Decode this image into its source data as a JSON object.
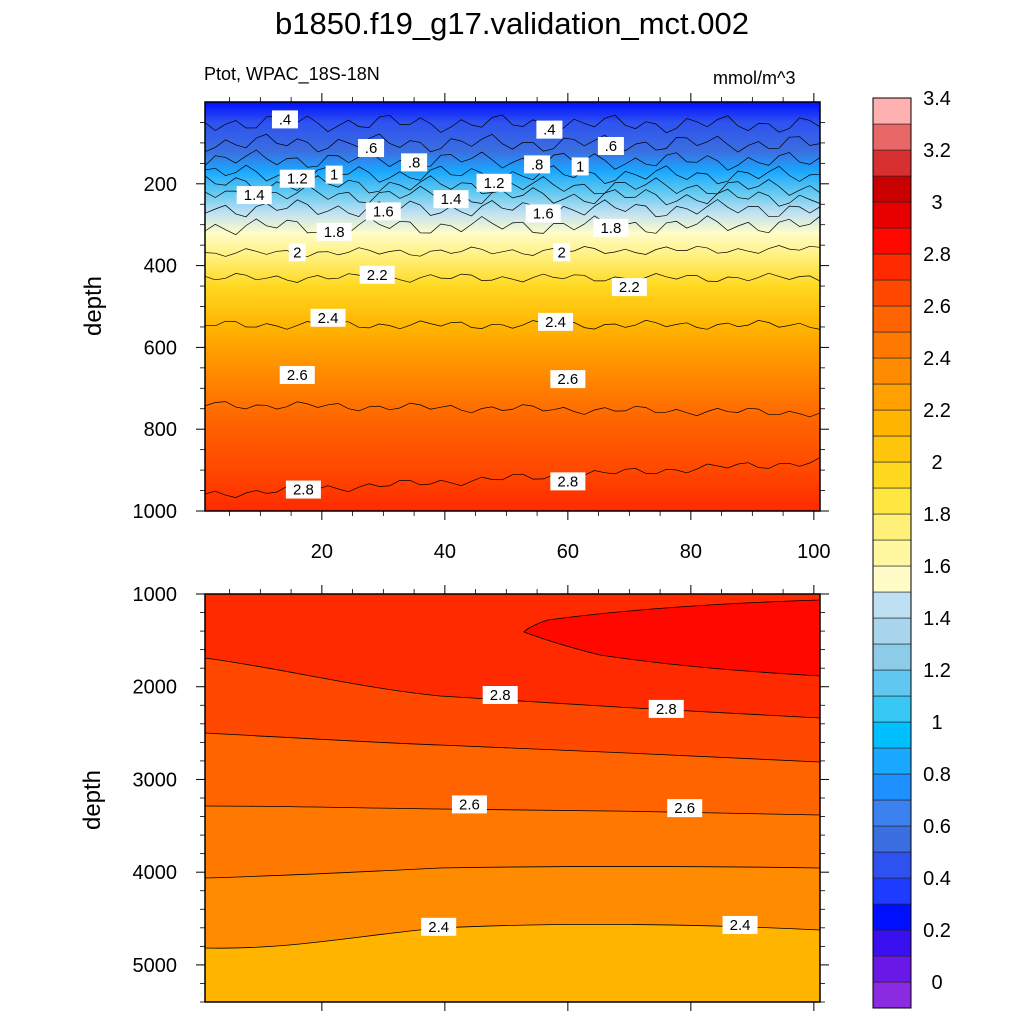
{
  "title": "b1850.f19_g17.validation_mct.002",
  "subtitle_left": "Ptot, WPAC_18S-18N",
  "subtitle_right": "mmol/m^3",
  "chart_data": [
    {
      "type": "contour",
      "panel": "upper",
      "ylabel": "depth",
      "xlabel": "",
      "xlim": [
        1,
        101
      ],
      "ylim": [
        1000,
        0
      ],
      "x_ticks": [
        20,
        40,
        60,
        80,
        100
      ],
      "y_ticks": [
        200,
        400,
        600,
        800,
        1000
      ],
      "contour_levels": [
        {
          "value": 0.4,
          "depth_left": 50,
          "depth_right": 55
        },
        {
          "value": 0.6,
          "depth_left": 100,
          "depth_right": 102
        },
        {
          "value": 0.8,
          "depth_left": 140,
          "depth_right": 145
        },
        {
          "value": 1,
          "depth_left": 175,
          "depth_right": 180
        },
        {
          "value": 1.2,
          "depth_left": 200,
          "depth_right": 210
        },
        {
          "value": 1.4,
          "depth_left": 225,
          "depth_right": 235
        },
        {
          "value": 1.6,
          "depth_left": 260,
          "depth_right": 262
        },
        {
          "value": 1.8,
          "depth_left": 305,
          "depth_right": 300
        },
        {
          "value": 2,
          "depth_left": 370,
          "depth_right": 360
        },
        {
          "value": 2.2,
          "depth_left": 430,
          "depth_right": 430
        },
        {
          "value": 2.4,
          "depth_left": 545,
          "depth_right": 545
        },
        {
          "value": 2.6,
          "depth_left": 740,
          "depth_right": 760
        },
        {
          "value": 2.8,
          "depth_left": 960,
          "depth_right": 880
        }
      ],
      "contour_labels": [
        {
          "text": ".4",
          "x": 14,
          "depth": 45
        },
        {
          "text": ".6",
          "x": 28,
          "depth": 115
        },
        {
          "text": ".8",
          "x": 35,
          "depth": 150
        },
        {
          "text": "1",
          "x": 22,
          "depth": 180
        },
        {
          "text": "1.2",
          "x": 16,
          "depth": 190
        },
        {
          "text": "1.4",
          "x": 9,
          "depth": 230
        },
        {
          "text": "1.6",
          "x": 30,
          "depth": 270
        },
        {
          "text": "1.8",
          "x": 22,
          "depth": 320
        },
        {
          "text": "2",
          "x": 16,
          "depth": 370
        },
        {
          "text": "2.2",
          "x": 29,
          "depth": 425
        },
        {
          "text": "2.4",
          "x": 21,
          "depth": 530
        },
        {
          "text": "2.6",
          "x": 16,
          "depth": 670
        },
        {
          "text": "2.8",
          "x": 17,
          "depth": 950
        },
        {
          "text": ".4",
          "x": 57,
          "depth": 70
        },
        {
          "text": ".6",
          "x": 67,
          "depth": 110
        },
        {
          "text": ".8",
          "x": 55,
          "depth": 155
        },
        {
          "text": "1",
          "x": 62,
          "depth": 160
        },
        {
          "text": "1.2",
          "x": 48,
          "depth": 200
        },
        {
          "text": "1.4",
          "x": 41,
          "depth": 240
        },
        {
          "text": "1.6",
          "x": 56,
          "depth": 275
        },
        {
          "text": "1.8",
          "x": 67,
          "depth": 310
        },
        {
          "text": "2",
          "x": 59,
          "depth": 370
        },
        {
          "text": "2.2",
          "x": 70,
          "depth": 455
        },
        {
          "text": "2.4",
          "x": 58,
          "depth": 540
        },
        {
          "text": "2.6",
          "x": 60,
          "depth": 680
        },
        {
          "text": "2.8",
          "x": 60,
          "depth": 930
        }
      ]
    },
    {
      "type": "contour",
      "panel": "lower",
      "ylabel": "depth",
      "xlabel": "",
      "xlim": [
        1,
        101
      ],
      "ylim": [
        1000,
        5400
      ],
      "y_ticks": [
        1000,
        2000,
        3000,
        4000,
        5000
      ],
      "contour_labels": [
        {
          "text": "2.8",
          "x": 49,
          "depth": 2100
        },
        {
          "text": "2.8",
          "x": 76,
          "depth": 2250
        },
        {
          "text": "2.6",
          "x": 44,
          "depth": 3280
        },
        {
          "text": "2.6",
          "x": 79,
          "depth": 3320
        },
        {
          "text": "2.4",
          "x": 39,
          "depth": 4600
        },
        {
          "text": "2.4",
          "x": 88,
          "depth": 4580
        }
      ]
    }
  ],
  "colorbar": {
    "labels": [
      "0",
      "0.2",
      "0.4",
      "0.6",
      "0.8",
      "1",
      "1.2",
      "1.4",
      "1.6",
      "1.8",
      "2",
      "2.2",
      "2.4",
      "2.6",
      "2.8",
      "3",
      "3.2",
      "3.4"
    ],
    "colors": [
      "#8a2be2",
      "#6a18e8",
      "#3a10f0",
      "#0010ff",
      "#1e3cff",
      "#2e52f0",
      "#3b6ee0",
      "#3b82f0",
      "#1e90ff",
      "#1aa8ff",
      "#00bfff",
      "#38c8f4",
      "#60c8f0",
      "#8ccce8",
      "#a8d4ec",
      "#bee0f2",
      "#fffcc8",
      "#fff8a0",
      "#fff07a",
      "#ffe640",
      "#ffd820",
      "#ffc40c",
      "#ffb400",
      "#ffa000",
      "#ff8c00",
      "#ff7800",
      "#ff6400",
      "#ff4800",
      "#ff2a00",
      "#ff0800",
      "#e80000",
      "#c80000",
      "#d83030",
      "#e86868",
      "#ffb0b0"
    ]
  }
}
